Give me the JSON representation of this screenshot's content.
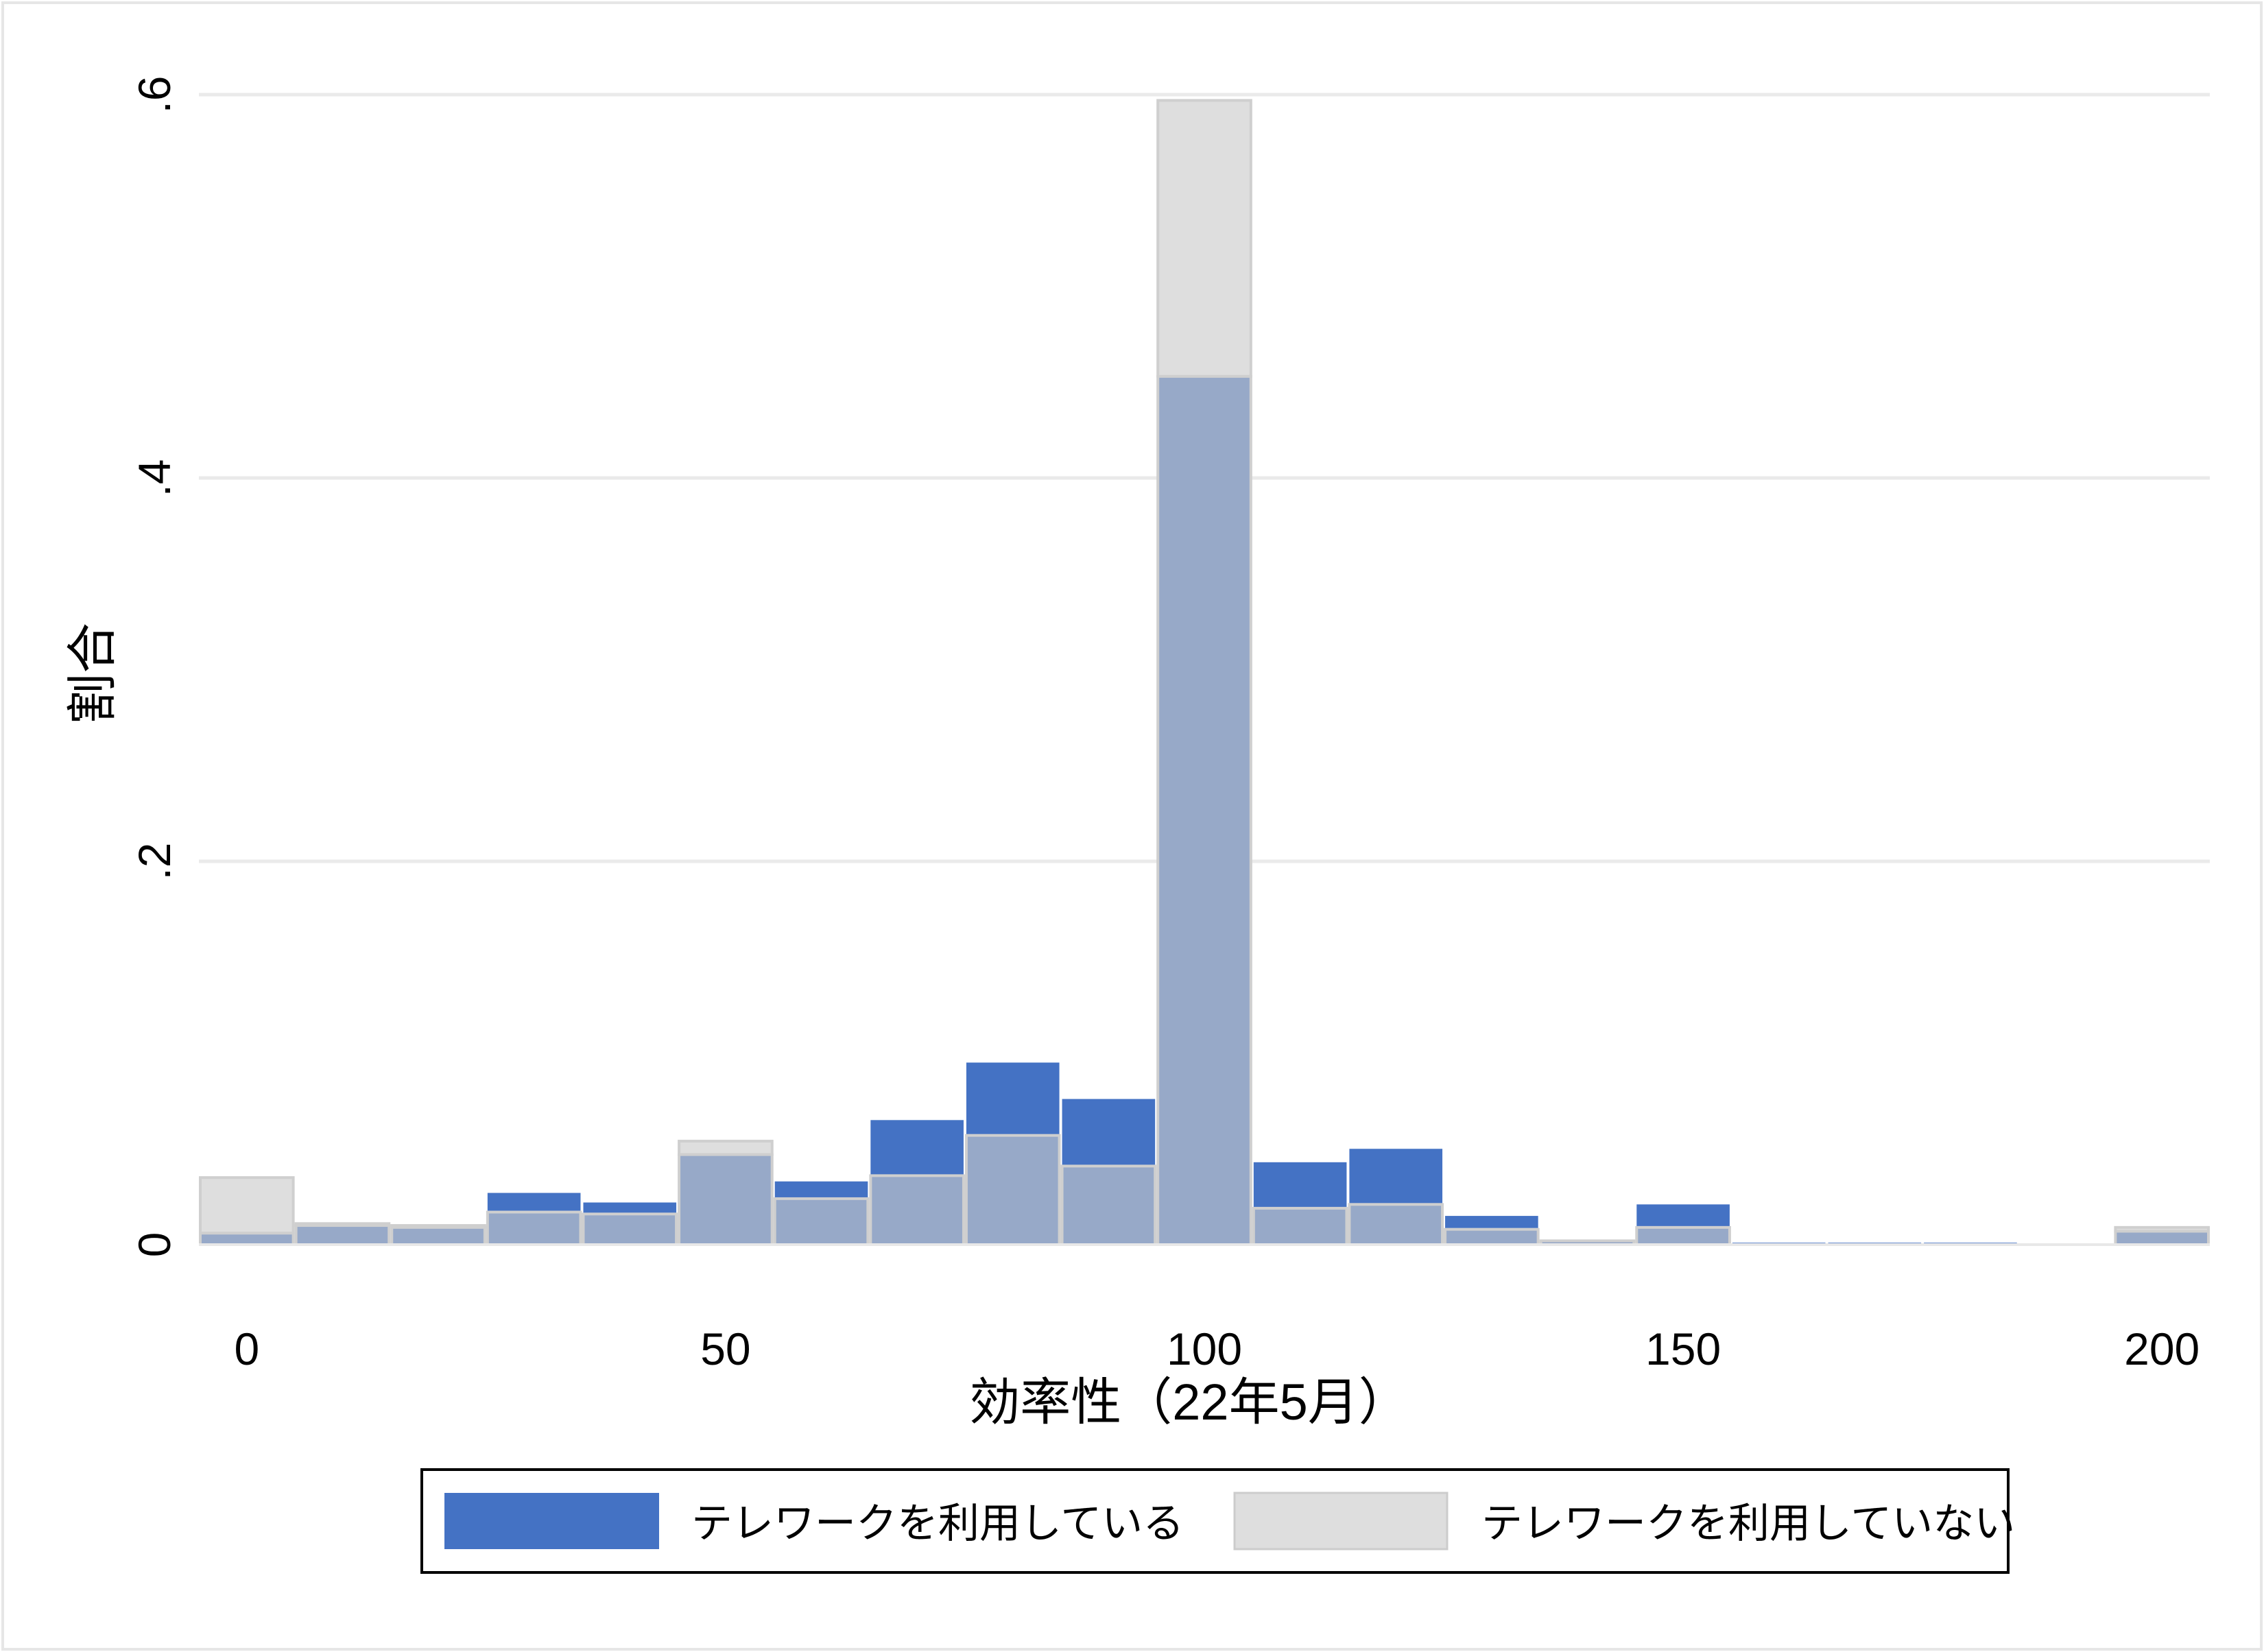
{
  "chart_data": {
    "type": "bar",
    "title": "",
    "xlabel": "効率性（22年5月）",
    "ylabel": "割合",
    "xlim": [
      -5,
      205
    ],
    "ylim": [
      0,
      0.6
    ],
    "x_ticks": [
      {
        "value": 0,
        "label": "0"
      },
      {
        "value": 50,
        "label": "50"
      },
      {
        "value": 100,
        "label": "100"
      },
      {
        "value": 150,
        "label": "150"
      },
      {
        "value": 200,
        "label": "200"
      }
    ],
    "y_ticks": [
      {
        "value": 0,
        "label": "0"
      },
      {
        "value": 0.2,
        "label": ".2"
      },
      {
        "value": 0.4,
        "label": ".4"
      },
      {
        "value": 0.6,
        "label": ".6"
      }
    ],
    "grid": true,
    "legend_position": "bottom",
    "bin_width": 10,
    "bin_centers": [
      0,
      10,
      20,
      30,
      40,
      50,
      60,
      70,
      80,
      90,
      100,
      110,
      120,
      130,
      140,
      150,
      160,
      170,
      180,
      190,
      200
    ],
    "series": [
      {
        "name": "テレワークを利用している",
        "color": "#4472c4",
        "values": [
          0.006,
          0.01,
          0.009,
          0.027,
          0.022,
          0.047,
          0.033,
          0.065,
          0.095,
          0.076,
          0.453,
          0.043,
          0.05,
          0.015,
          0.002,
          0.021,
          0.001,
          0.001,
          0.001,
          0.0,
          0.007
        ]
      },
      {
        "name": "テレワークを利用していない",
        "color": "#dedede",
        "values": [
          0.035,
          0.011,
          0.01,
          0.017,
          0.016,
          0.054,
          0.024,
          0.036,
          0.057,
          0.041,
          0.597,
          0.019,
          0.021,
          0.008,
          0.002,
          0.009,
          0.0,
          0.0,
          0.0,
          0.0,
          0.009
        ]
      }
    ],
    "overlap_color": "#97a9c8"
  }
}
